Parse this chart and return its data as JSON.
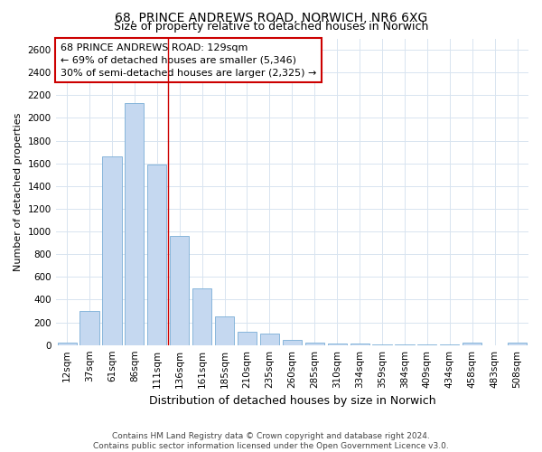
{
  "title": "68, PRINCE ANDREWS ROAD, NORWICH, NR6 6XG",
  "subtitle": "Size of property relative to detached houses in Norwich",
  "xlabel": "Distribution of detached houses by size in Norwich",
  "ylabel": "Number of detached properties",
  "categories": [
    "12sqm",
    "37sqm",
    "61sqm",
    "86sqm",
    "111sqm",
    "136sqm",
    "161sqm",
    "185sqm",
    "210sqm",
    "235sqm",
    "260sqm",
    "285sqm",
    "310sqm",
    "334sqm",
    "359sqm",
    "384sqm",
    "409sqm",
    "434sqm",
    "458sqm",
    "483sqm",
    "508sqm"
  ],
  "values": [
    20,
    300,
    1660,
    2130,
    1590,
    960,
    500,
    250,
    120,
    100,
    45,
    25,
    15,
    12,
    8,
    5,
    5,
    3,
    20,
    0,
    20
  ],
  "bar_color": "#c5d8f0",
  "bar_edge_color": "#7aaed6",
  "vline_x_index": 4.5,
  "vline_color": "#cc0000",
  "annotation_line1": "68 PRINCE ANDREWS ROAD: 129sqm",
  "annotation_line2": "← 69% of detached houses are smaller (5,346)",
  "annotation_line3": "30% of semi-detached houses are larger (2,325) →",
  "annotation_box_color": "#ffffff",
  "annotation_box_edge_color": "#cc0000",
  "ylim": [
    0,
    2700
  ],
  "yticks": [
    0,
    200,
    400,
    600,
    800,
    1000,
    1200,
    1400,
    1600,
    1800,
    2000,
    2200,
    2400,
    2600
  ],
  "footer_line1": "Contains HM Land Registry data © Crown copyright and database right 2024.",
  "footer_line2": "Contains public sector information licensed under the Open Government Licence v3.0.",
  "background_color": "#ffffff",
  "plot_bg_color": "#ffffff",
  "grid_color": "#d8e4f0",
  "title_fontsize": 10,
  "subtitle_fontsize": 9,
  "xlabel_fontsize": 9,
  "ylabel_fontsize": 8,
  "tick_fontsize": 7.5,
  "footer_fontsize": 6.5
}
